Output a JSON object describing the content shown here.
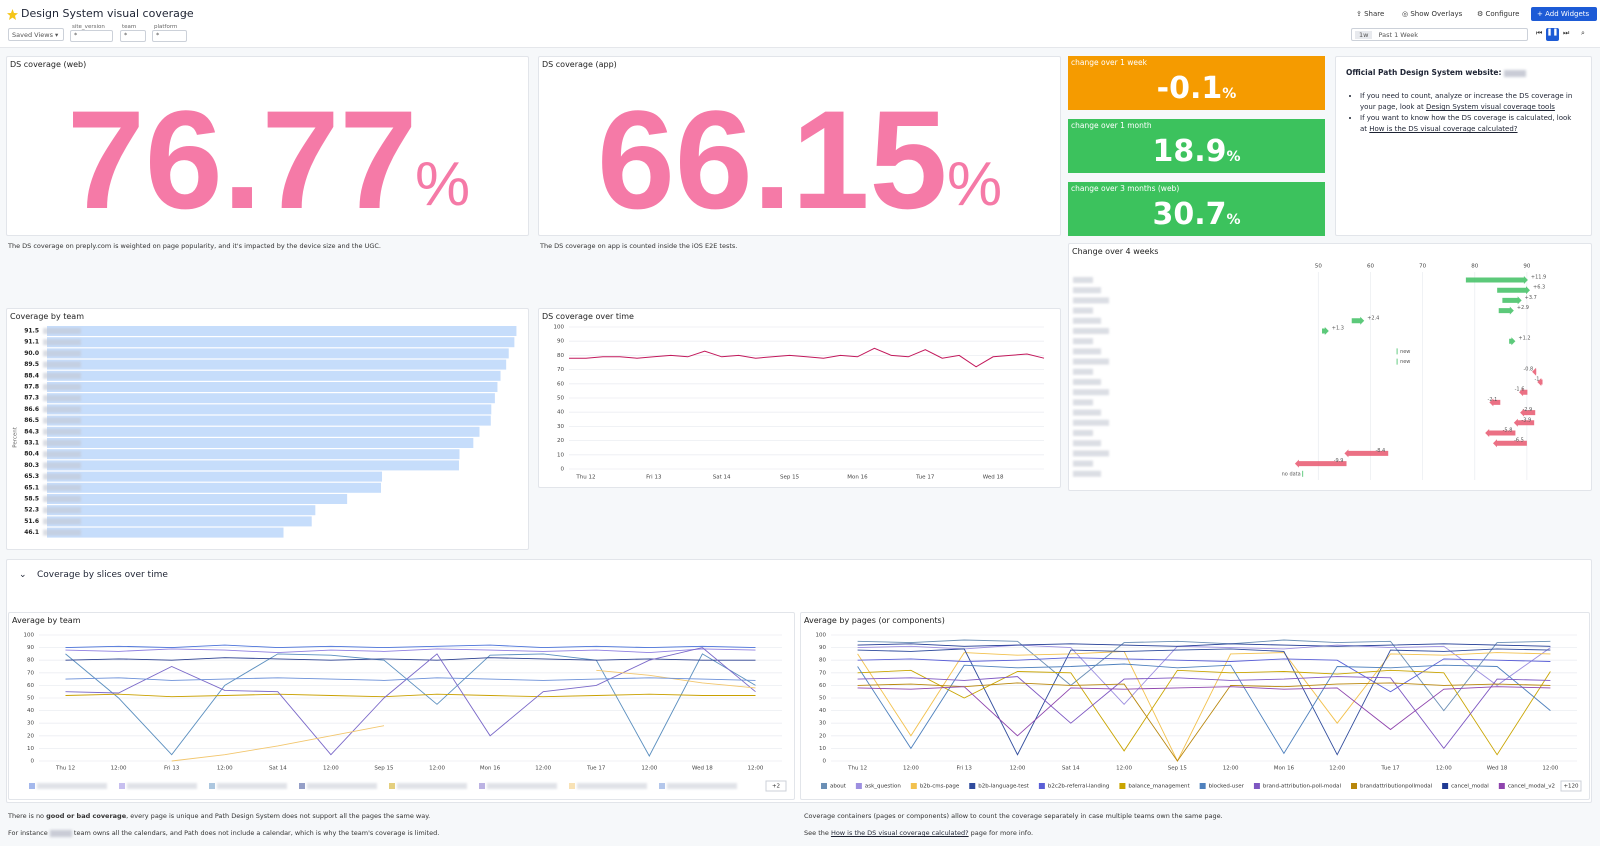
{
  "header": {
    "title": "Design System visual coverage",
    "saved_views": "Saved Views",
    "filters": [
      {
        "label": "site_version",
        "value": "*"
      },
      {
        "label": "team",
        "value": "*"
      },
      {
        "label": "platform",
        "value": "*"
      }
    ],
    "buttons": [
      "Share",
      "Show Overlays",
      "Configure",
      "Add Widgets"
    ],
    "time": {
      "short": "1w",
      "label": "Past 1 Week"
    }
  },
  "web": {
    "title": "DS coverage (web)",
    "value": "76.77",
    "unit": "%",
    "note": "The DS coverage on preply.com is weighted on page popularity, and it's impacted by the device size and the UGC."
  },
  "app": {
    "title": "DS coverage (app)",
    "value": "66.15",
    "unit": "%",
    "note": "The DS coverage on app is counted inside the iOS E2E tests."
  },
  "changes": [
    {
      "title": "change over 1 week",
      "value": "-0.1",
      "unit": "%"
    },
    {
      "title": "change over 1 month",
      "value": "18.9",
      "unit": "%"
    },
    {
      "title": "change over 3 months (web)",
      "value": "30.7",
      "unit": "%"
    }
  ],
  "info": {
    "heading": "Official Path Design System website:",
    "bullets": [
      {
        "text": "If you need to count, analyze or increase the DS coverage in your page, look at ",
        "link": "Design System visual coverage tools"
      },
      {
        "text": "If you want to know how the DS coverage is calculated, look at ",
        "link": "How is the DS visual coverage calculated?"
      }
    ]
  },
  "section": {
    "title": "Coverage by slices over time"
  },
  "footer": {
    "left": {
      "before": "There is no ",
      "bold": "good or bad coverage",
      "after": ", every page is unique and Path Design System does not support all the pages the same way.",
      "line2a": "For instance",
      "line2b": "team owns all the calendars, and Path does not include a calendar, which is why the team's coverage is limited."
    },
    "right": {
      "line1": "Coverage containers (pages or components) allow to count the coverage separately in case multiple teams own the same page.",
      "before": "See the ",
      "link": "How is the DS visual coverage calculated?",
      "after": " page for more info."
    }
  },
  "chart_data": [
    {
      "type": "hbar",
      "title": "Coverage by team",
      "y_label": "Percent",
      "categories": [
        null,
        null,
        null,
        null,
        null,
        null,
        null,
        null,
        null,
        null,
        null,
        null,
        null,
        null,
        null,
        null,
        null,
        null,
        null
      ],
      "values": [
        91.5,
        91.1,
        90.0,
        89.5,
        88.4,
        87.8,
        87.3,
        86.6,
        86.5,
        84.3,
        83.1,
        80.4,
        80.3,
        65.3,
        65.1,
        58.5,
        52.3,
        51.6,
        46.1
      ],
      "value_labels": [
        "91.5",
        "91.1",
        "90.0",
        "89.5",
        "88.4",
        "87.8",
        "87.3",
        "86.6",
        "86.5",
        "84.3",
        "83.1",
        "80.4",
        "80.3",
        "65.3",
        "65.1",
        "58.5",
        "52.3",
        "51.6",
        "46.1"
      ],
      "xlim": [
        0,
        92
      ],
      "color": "#c6ddfb"
    },
    {
      "type": "line",
      "title": "DS coverage over time",
      "categories": [
        null,
        "Thu 12",
        null,
        null,
        null,
        "Fri 13",
        null,
        null,
        null,
        "Sat 14",
        null,
        null,
        null,
        "Sep 15",
        null,
        null,
        null,
        "Mon 16",
        null,
        null,
        null,
        "Tue 17",
        null,
        null,
        null,
        "Wed 18",
        null,
        null,
        null
      ],
      "series": [
        {
          "color": "#c2185b",
          "values": [
            78,
            78,
            79,
            79,
            78,
            79,
            80,
            79,
            83,
            79,
            80,
            78,
            79,
            80,
            79,
            78,
            80,
            79,
            85,
            80,
            79,
            84,
            78,
            80,
            72,
            79,
            80,
            81,
            78
          ]
        }
      ],
      "ylim": [
        0,
        100
      ],
      "yticks": [
        0,
        10,
        20,
        30,
        40,
        50,
        60,
        70,
        80,
        90,
        100
      ],
      "grid": true
    },
    {
      "type": "arrow",
      "title": "Change over 4 weeks",
      "values": [
        90.2,
        90.6,
        89.0,
        87.5,
        58.8,
        52.0,
        87.8,
        65.1,
        65.1,
        91.0,
        92.0,
        88.5,
        82.8,
        88.7,
        87.5,
        82.0,
        83.5,
        55.0,
        45.5,
        47.0
      ],
      "changes": [
        11.9,
        6.3,
        3.7,
        2.9,
        2.4,
        1.3,
        1.2,
        null,
        null,
        -0.8,
        -1,
        -1.6,
        -2.1,
        -2.9,
        -3.9,
        -5.8,
        -6.5,
        -8.4,
        -9.9,
        null
      ],
      "change_labels": [
        "+11.9",
        "+6.3",
        "+3.7",
        "+2.9",
        "+2.4",
        "+1.3",
        "+1.2",
        "new",
        "new",
        "-0.8",
        "-1",
        "-1.6",
        "-2.1",
        "-2.9",
        "-3.9",
        "-5.8",
        "-6.5",
        "-8.4",
        "-9.9",
        "no data"
      ],
      "xlim": [
        6,
        100
      ],
      "xticks": [
        50,
        60,
        70,
        80,
        90
      ],
      "up_color": "#3fbf63",
      "down_color": "#e8576f",
      "grid": true
    },
    {
      "type": "multiline",
      "title": "Average by team",
      "categories": [
        "Thu 12",
        "12:00",
        "Fri 13",
        "12:00",
        "Sat 14",
        "12:00",
        "Sep 15",
        "12:00",
        "Mon 16",
        "12:00",
        "Tue 17",
        "12:00",
        "Wed 18",
        "12:00"
      ],
      "series": [
        {
          "color": "#4a72d9",
          "values": [
            90,
            91,
            90,
            92,
            90,
            91,
            90,
            91,
            92,
            90,
            91,
            90,
            91,
            90
          ]
        },
        {
          "color": "#8f7fe0",
          "values": [
            88,
            87,
            89,
            88,
            86,
            88,
            87,
            89,
            88,
            87,
            88,
            86,
            89,
            88
          ]
        },
        {
          "color": "#5b8fbf",
          "values": [
            85,
            50,
            5,
            60,
            85,
            84,
            80,
            45,
            84,
            85,
            80,
            4,
            85,
            60
          ]
        },
        {
          "color": "#2b3f8f",
          "values": [
            80,
            81,
            80,
            82,
            81,
            80,
            81,
            80,
            82,
            81,
            80,
            81,
            80,
            80
          ]
        },
        {
          "color": "#c9a000",
          "values": [
            52,
            53,
            51,
            52,
            53,
            52,
            51,
            53,
            52,
            51,
            52,
            53,
            52,
            52
          ]
        },
        {
          "color": "#7a68c8",
          "values": [
            55,
            54,
            75,
            56,
            55,
            5,
            50,
            85,
            20,
            55,
            60,
            80,
            90,
            55
          ]
        },
        {
          "color": "#f2c66d",
          "values": [
            null,
            null,
            0,
            5,
            12,
            20,
            28,
            null,
            null,
            null,
            72,
            68,
            62,
            58
          ]
        },
        {
          "color": "#6a8fd8",
          "values": [
            65,
            66,
            64,
            65,
            66,
            65,
            64,
            66,
            65,
            64,
            65,
            66,
            65,
            64
          ]
        }
      ],
      "more_label": "+2",
      "ylim": [
        0,
        100
      ],
      "yticks": [
        0,
        10,
        20,
        30,
        40,
        50,
        60,
        70,
        80,
        90,
        100
      ],
      "grid": true
    },
    {
      "type": "multiline",
      "title": "Average by pages (or components)",
      "categories": [
        "Thu 12",
        "12:00",
        "Fri 13",
        "12:00",
        "Sat 14",
        "12:00",
        "Sep 15",
        "12:00",
        "Mon 16",
        "12:00",
        "Tue 17",
        "12:00",
        "Wed 18",
        "12:00"
      ],
      "series": [
        {
          "name": "about",
          "color": "#6b8fb5",
          "values": [
            95,
            94,
            96,
            95,
            60,
            94,
            95,
            93,
            96,
            94,
            95,
            40,
            94,
            95
          ]
        },
        {
          "name": "ask_question",
          "color": "#9d8fe0",
          "values": [
            90,
            91,
            89,
            92,
            90,
            45,
            91,
            90,
            89,
            92,
            90,
            91,
            60,
            90
          ]
        },
        {
          "name": "b2b-cms-page",
          "color": "#f2c14e",
          "values": [
            85,
            20,
            86,
            84,
            85,
            87,
            0,
            85,
            86,
            30,
            85,
            84,
            86,
            85
          ]
        },
        {
          "name": "b2b-language-test",
          "color": "#2f4b9c",
          "values": [
            88,
            87,
            89,
            5,
            88,
            87,
            88,
            89,
            87,
            5,
            88,
            87,
            89,
            88
          ]
        },
        {
          "name": "b2c2b-referral-landing",
          "color": "#5a5fd6",
          "values": [
            80,
            81,
            79,
            80,
            82,
            81,
            80,
            79,
            81,
            80,
            55,
            81,
            80,
            79
          ]
        },
        {
          "name": "balance_management",
          "color": "#c9a400",
          "values": [
            70,
            72,
            50,
            71,
            70,
            8,
            72,
            70,
            71,
            69,
            72,
            70,
            5,
            71
          ]
        },
        {
          "name": "blocked-user",
          "color": "#4f81bd",
          "values": [
            75,
            10,
            76,
            74,
            75,
            77,
            74,
            76,
            6,
            75,
            74,
            76,
            75,
            40
          ]
        },
        {
          "name": "brand-attribution-poll-modal",
          "color": "#7e57c2",
          "values": [
            65,
            66,
            64,
            67,
            30,
            65,
            66,
            64,
            65,
            67,
            66,
            10,
            65,
            64
          ]
        },
        {
          "name": "brandattributionpollmodal",
          "color": "#b8860b",
          "values": [
            60,
            61,
            59,
            62,
            60,
            61,
            0,
            60,
            59,
            61,
            62,
            60,
            61,
            60
          ]
        },
        {
          "name": "cancel_modal",
          "color": "#1f3a93",
          "values": [
            92,
            93,
            91,
            92,
            93,
            92,
            91,
            93,
            92,
            91,
            92,
            93,
            92,
            91
          ]
        },
        {
          "name": "cancel_modal_v2",
          "color": "#8e44ad",
          "values": [
            58,
            57,
            59,
            20,
            58,
            57,
            58,
            59,
            57,
            58,
            25,
            57,
            59,
            58
          ]
        }
      ],
      "more_label": "+120",
      "ylim": [
        0,
        100
      ],
      "yticks": [
        0,
        10,
        20,
        30,
        40,
        50,
        60,
        70,
        80,
        90,
        100
      ],
      "grid": true
    }
  ]
}
